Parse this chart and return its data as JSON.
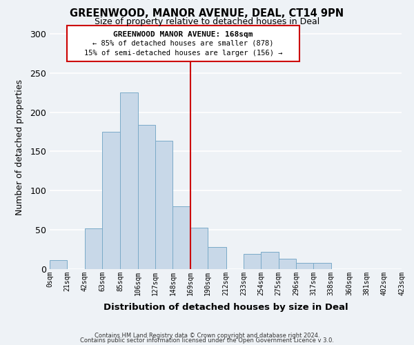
{
  "title": "GREENWOOD, MANOR AVENUE, DEAL, CT14 9PN",
  "subtitle": "Size of property relative to detached houses in Deal",
  "xlabel": "Distribution of detached houses by size in Deal",
  "ylabel": "Number of detached properties",
  "bar_left_edges": [
    0,
    21,
    42,
    63,
    85,
    106,
    127,
    148,
    169,
    190,
    212,
    233,
    254,
    275,
    296,
    317,
    338,
    360,
    381,
    402
  ],
  "bar_heights": [
    11,
    0,
    52,
    175,
    225,
    184,
    164,
    80,
    53,
    28,
    0,
    19,
    22,
    13,
    8,
    8,
    0,
    0,
    0,
    0
  ],
  "bar_widths": [
    21,
    21,
    21,
    22,
    21,
    21,
    21,
    21,
    21,
    22,
    21,
    21,
    21,
    21,
    21,
    21,
    22,
    21,
    21,
    21
  ],
  "bar_color": "#c8d8e8",
  "bar_edgecolor": "#7aaac8",
  "tick_labels": [
    "0sqm",
    "21sqm",
    "42sqm",
    "63sqm",
    "85sqm",
    "106sqm",
    "127sqm",
    "148sqm",
    "169sqm",
    "190sqm",
    "212sqm",
    "233sqm",
    "254sqm",
    "275sqm",
    "296sqm",
    "317sqm",
    "338sqm",
    "360sqm",
    "381sqm",
    "402sqm",
    "423sqm"
  ],
  "vline_x": 169,
  "vline_color": "#cc0000",
  "annotation_title": "GREENWOOD MANOR AVENUE: 168sqm",
  "annotation_line1": "← 85% of detached houses are smaller (878)",
  "annotation_line2": "15% of semi-detached houses are larger (156) →",
  "ylim": [
    0,
    310
  ],
  "xlim": [
    0,
    423
  ],
  "yticks": [
    0,
    50,
    100,
    150,
    200,
    250,
    300
  ],
  "footer1": "Contains HM Land Registry data © Crown copyright and database right 2024.",
  "footer2": "Contains public sector information licensed under the Open Government Licence v 3.0.",
  "background_color": "#eef2f6",
  "grid_color": "#ffffff"
}
